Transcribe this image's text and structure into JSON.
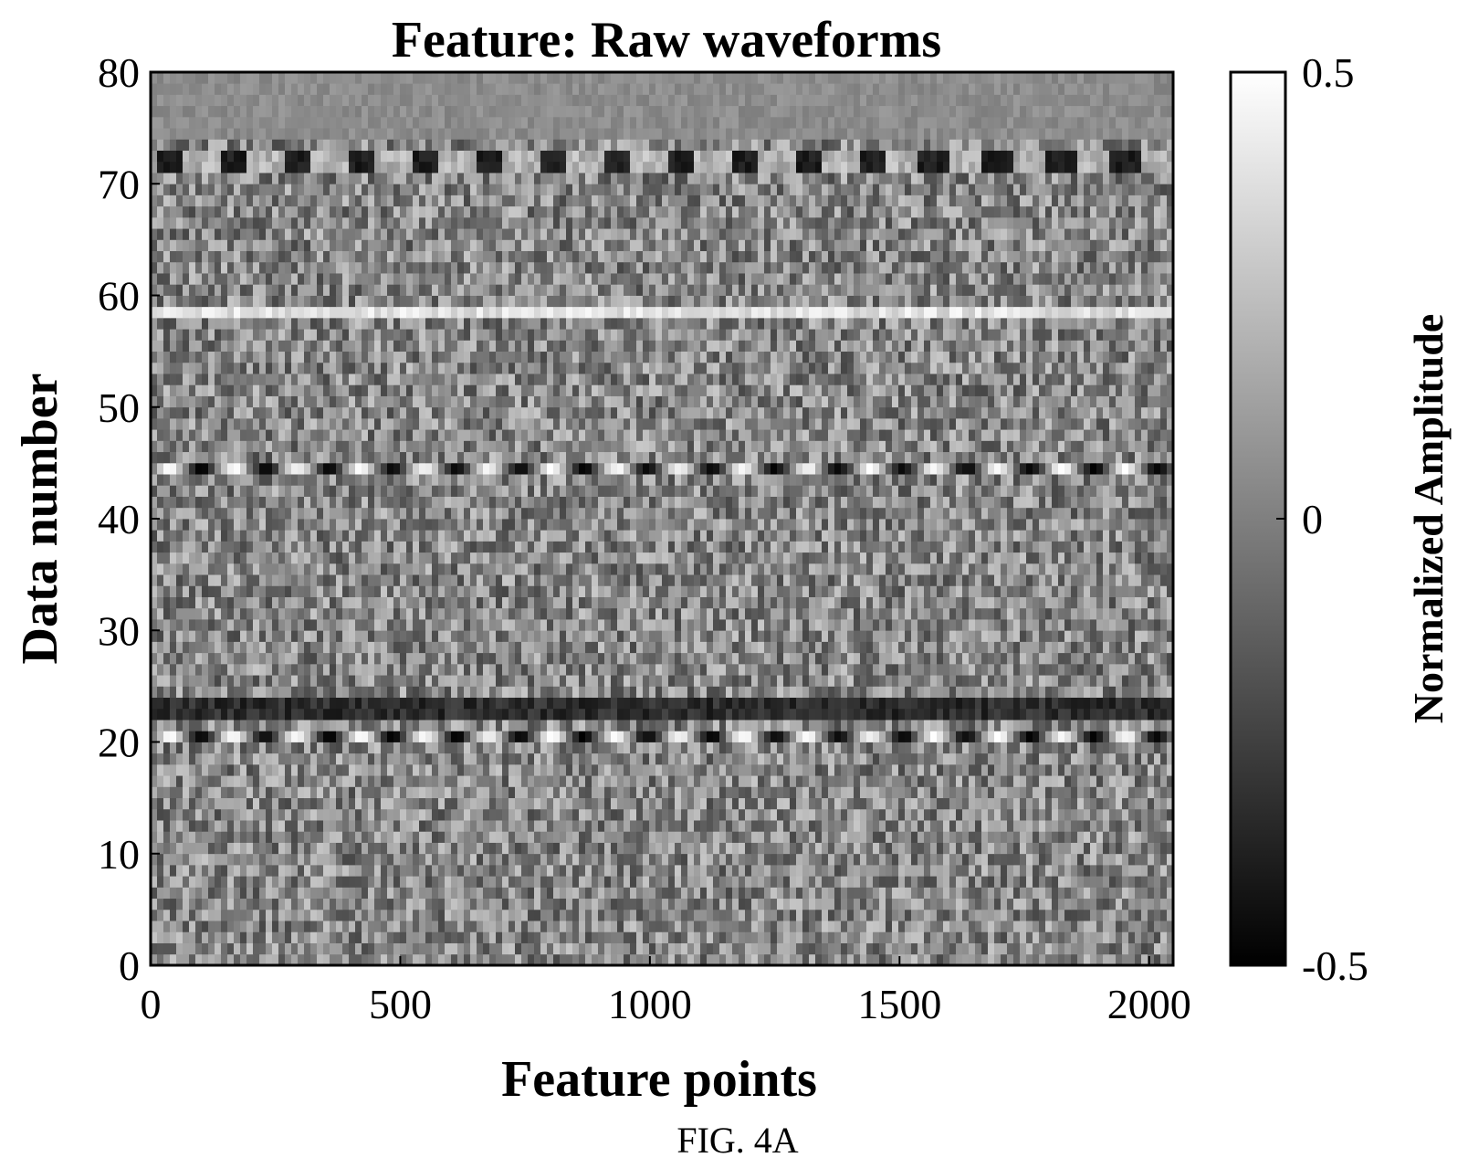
{
  "chart_data": {
    "type": "heatmap",
    "title": "Feature: Raw waveforms",
    "xlabel": "Feature points",
    "ylabel": "Data number",
    "xlim": [
      0,
      2048
    ],
    "ylim": [
      0,
      80
    ],
    "x_ticks": [
      "0",
      "500",
      "1000",
      "1500",
      "2000"
    ],
    "x_tick_values": [
      0,
      500,
      1000,
      1500,
      2000
    ],
    "y_ticks": [
      "0",
      "10",
      "20",
      "30",
      "40",
      "50",
      "60",
      "70",
      "80"
    ],
    "y_tick_values": [
      0,
      10,
      20,
      30,
      40,
      50,
      60,
      70,
      80
    ],
    "colorbar": {
      "label": "Normalized Amplitude",
      "min": -0.5,
      "max": 0.5,
      "ticks": [
        "0.5",
        "0",
        "-0.5"
      ],
      "tick_values": [
        0.5,
        0,
        -0.5
      ],
      "colormap": "gray",
      "low_color": "#000000",
      "high_color": "#ffffff"
    },
    "rows": 80,
    "columns": 2048,
    "row_features": {
      "strong_periodic_rows": [
        20,
        44
      ],
      "dark_band_rows": [
        22,
        23
      ],
      "periodic_rows": [
        71,
        72
      ],
      "bright_line_row": 58,
      "quiet_rows": [
        74,
        75,
        76,
        77,
        78,
        79
      ]
    }
  },
  "caption": "FIG. 4A"
}
